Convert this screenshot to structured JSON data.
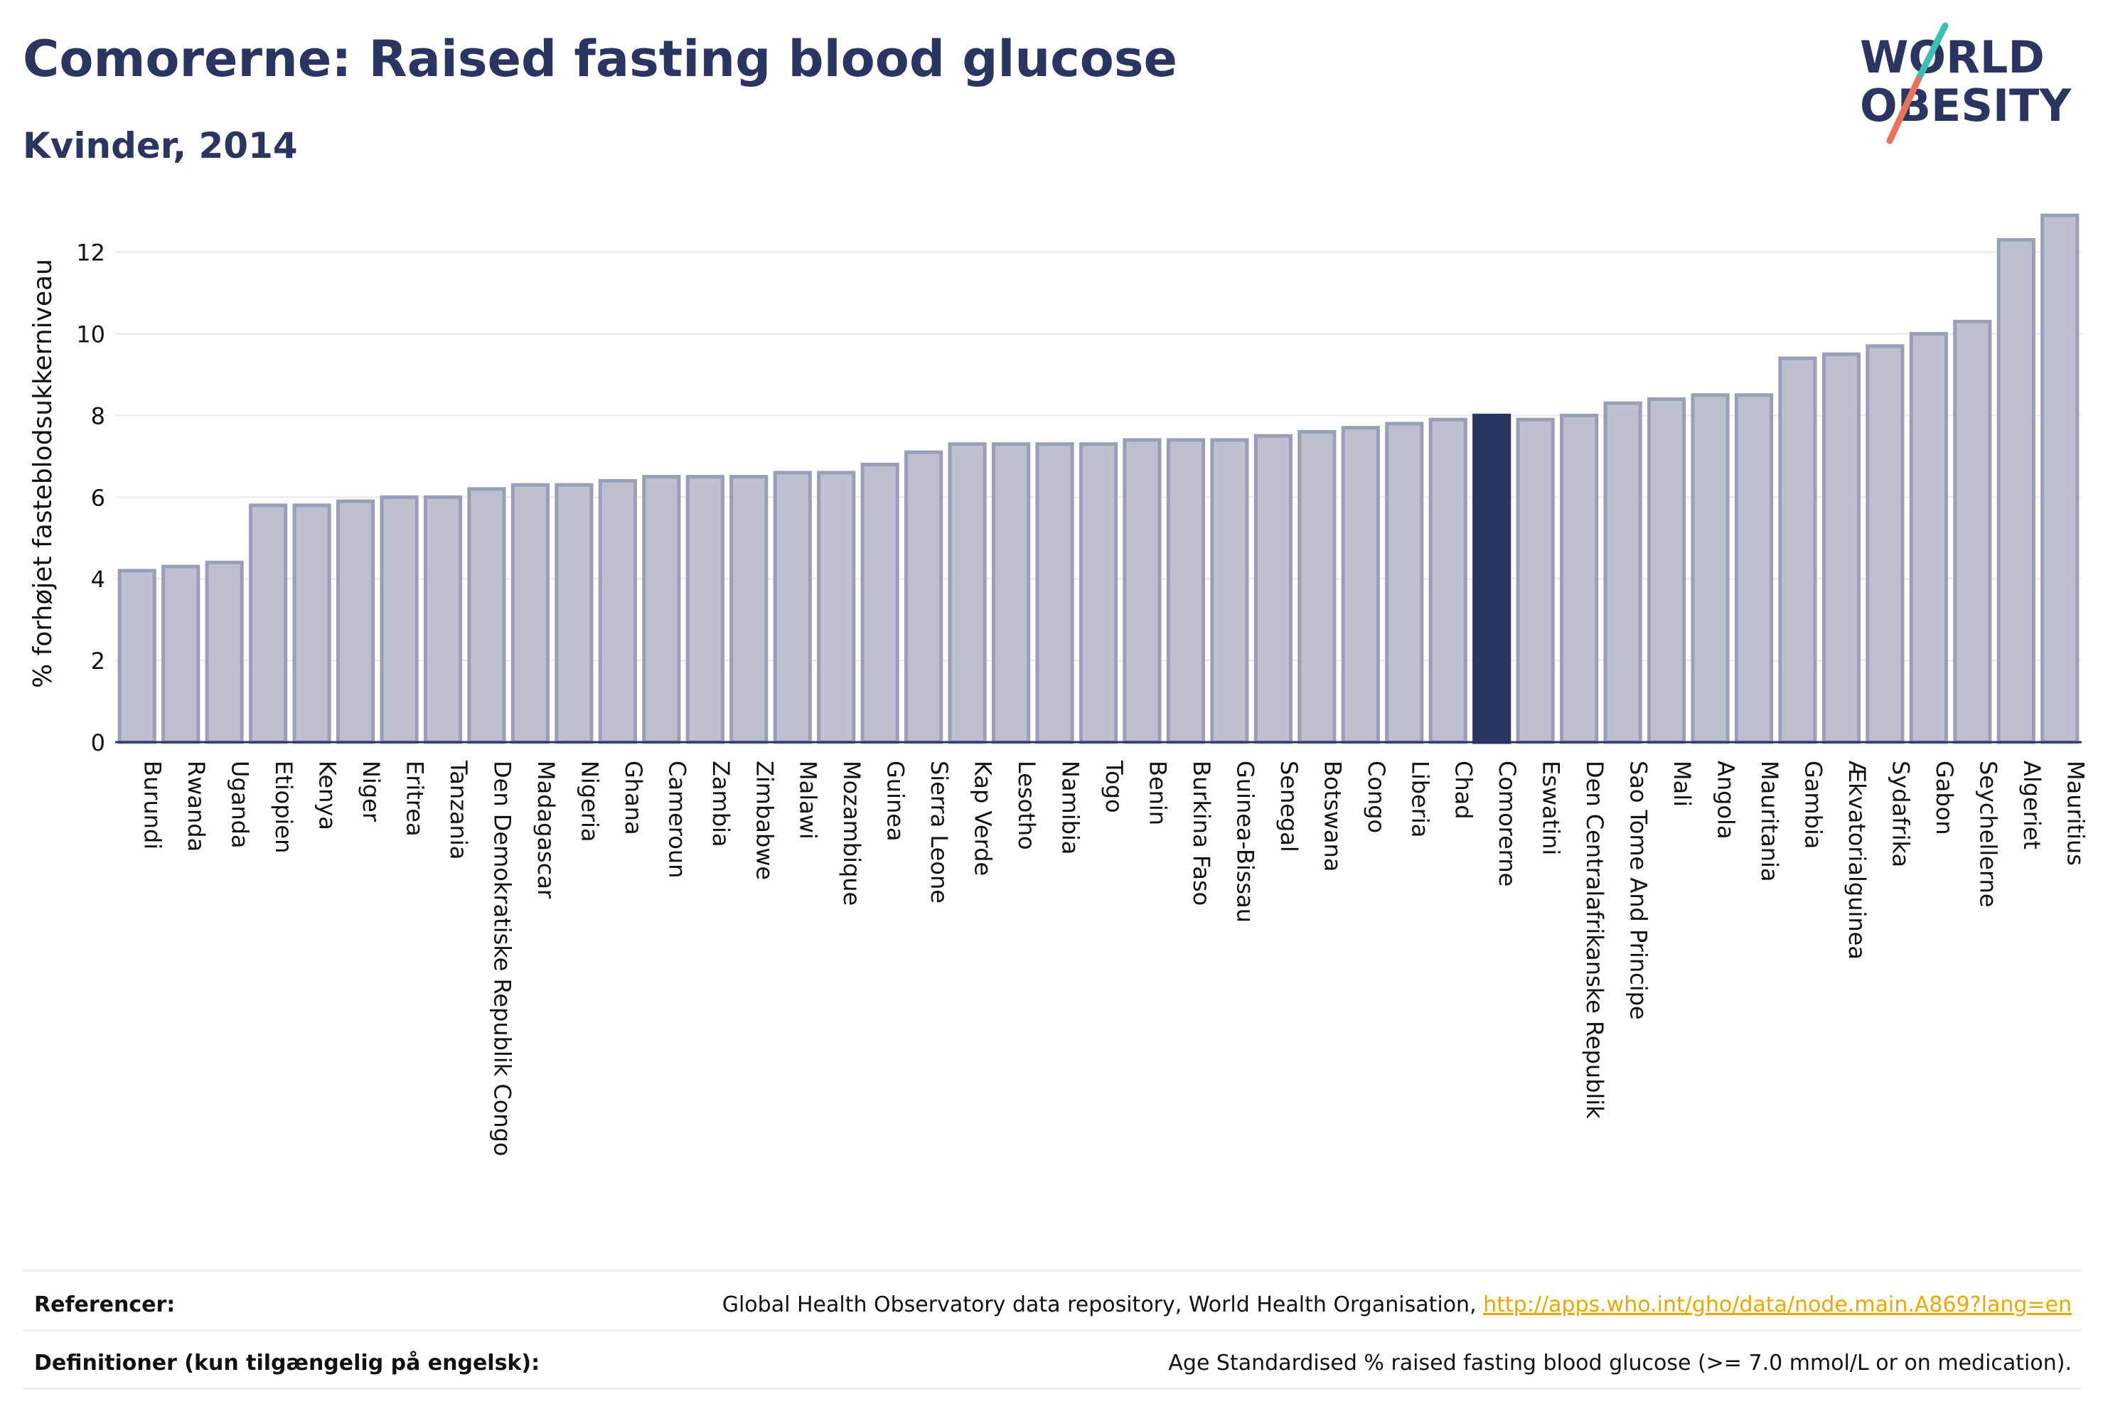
{
  "header": {
    "title": "Comorerne: Raised fasting blood glucose",
    "subtitle": "Kvinder, 2014"
  },
  "logo": {
    "line1": "WORLD",
    "line2": "OBESITY",
    "colors": {
      "text": "#2b3561",
      "slash_teal": "#3bbfb5",
      "slash_coral": "#e8735a"
    }
  },
  "colors": {
    "bar_fill": "#bcc0cf",
    "bar_stroke": "#9a9fb8",
    "highlight_fill": "#2b3561",
    "axis": "#2b3561",
    "grid": "#e6e8ef",
    "text": "#111111"
  },
  "chart_data": {
    "type": "bar",
    "title": "",
    "xlabel": "",
    "ylabel": "% forhøjet fasteblodsukkerniveau",
    "ylim": [
      0,
      13.3
    ],
    "yticks": [
      0,
      2,
      4,
      6,
      8,
      10,
      12
    ],
    "grid": true,
    "highlight": "Comorerne",
    "categories": [
      "Burundi",
      "Rwanda",
      "Uganda",
      "Etiopien",
      "Kenya",
      "Niger",
      "Eritrea",
      "Tanzania",
      "Den Demokratiske Republik Congo",
      "Madagascar",
      "Nigeria",
      "Ghana",
      "Cameroun",
      "Zambia",
      "Zimbabwe",
      "Malawi",
      "Mozambique",
      "Guinea",
      "Sierra Leone",
      "Kap Verde",
      "Lesotho",
      "Namibia",
      "Togo",
      "Benin",
      "Burkina Faso",
      "Guinea-Bissau",
      "Senegal",
      "Botswana",
      "Congo",
      "Liberia",
      "Chad",
      "Comorerne",
      "Eswatini",
      "Den Centralafrikanske Republik",
      "Sao Tome And Principe",
      "Mali",
      "Angola",
      "Mauritania",
      "Gambia",
      "Ækvatorialguinea",
      "Sydafrika",
      "Gabon",
      "Seychellerne",
      "Algeriet",
      "Mauritius"
    ],
    "values": [
      4.2,
      4.3,
      4.4,
      5.8,
      5.8,
      5.9,
      6.0,
      6.0,
      6.2,
      6.3,
      6.3,
      6.4,
      6.5,
      6.5,
      6.5,
      6.6,
      6.6,
      6.8,
      7.1,
      7.3,
      7.3,
      7.3,
      7.3,
      7.4,
      7.4,
      7.4,
      7.5,
      7.6,
      7.7,
      7.8,
      7.9,
      8.0,
      7.9,
      8.0,
      8.3,
      8.4,
      8.5,
      8.5,
      9.4,
      9.5,
      9.7,
      10.0,
      10.3,
      12.3,
      12.9
    ]
  },
  "footer": {
    "references_label": "Referencer:",
    "references_text": "Global Health Observatory data repository, World Health Organisation, ",
    "references_link": "http://apps.who.int/gho/data/node.main.A869?lang=en",
    "definitions_label": "Definitioner (kun tilgængelig på engelsk):",
    "definitions_text": "Age Standardised % raised fasting blood glucose (>= 7.0 mmol/L or on medication)."
  }
}
